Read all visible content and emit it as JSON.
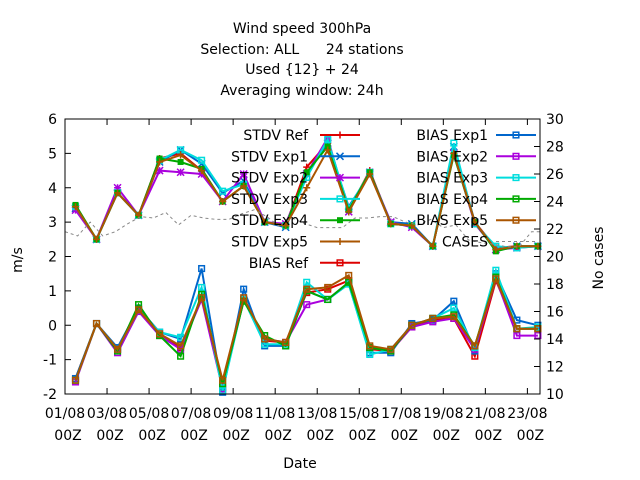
{
  "chart_data": {
    "type": "line",
    "title_lines": [
      "Wind speed 300hPa",
      "Selection: ALL      24 stations",
      "Used {12} + 24",
      "Averaging window: 24h"
    ],
    "xlabel": "Date",
    "ylabel": "m/s",
    "y2label": "No cases",
    "ylim": [
      -2,
      6
    ],
    "y2lim": [
      10,
      30
    ],
    "xlim": [
      0,
      22.6
    ],
    "yticks": [
      -2,
      -1,
      0,
      1,
      2,
      3,
      4,
      5,
      6
    ],
    "y2ticks": [
      10,
      12,
      14,
      16,
      18,
      20,
      22,
      24,
      26,
      28,
      30
    ],
    "xticks": [
      {
        "x": 0,
        "date": "01/08",
        "hour": "00Z"
      },
      {
        "x": 2,
        "date": "03/08",
        "hour": "00Z"
      },
      {
        "x": 4,
        "date": "05/08",
        "hour": "00Z"
      },
      {
        "x": 6,
        "date": "07/08",
        "hour": "00Z"
      },
      {
        "x": 8,
        "date": "09/08",
        "hour": "00Z"
      },
      {
        "x": 10,
        "date": "11/08",
        "hour": "00Z"
      },
      {
        "x": 12,
        "date": "13/08",
        "hour": "00Z"
      },
      {
        "x": 14,
        "date": "15/08",
        "hour": "00Z"
      },
      {
        "x": 16,
        "date": "17/08",
        "hour": "00Z"
      },
      {
        "x": 18,
        "date": "19/08",
        "hour": "00Z"
      },
      {
        "x": 20,
        "date": "21/08",
        "hour": "00Z"
      },
      {
        "x": 22,
        "date": "23/08",
        "hour": "00Z"
      }
    ],
    "x": [
      0.5,
      1.5,
      2.5,
      3.5,
      4.5,
      5.5,
      6.5,
      7.5,
      8.5,
      9.5,
      10.5,
      11.5,
      12.5,
      13.5,
      14.5,
      15.5,
      16.5,
      17.5,
      18.5,
      19.5,
      20.5,
      21.5,
      22.5
    ],
    "legend_placement": "top-right inside",
    "series": [
      {
        "name": "STDV Ref",
        "color": "#dd0000",
        "marker": "plus",
        "axis": "y",
        "values": [
          3.45,
          2.5,
          3.85,
          3.2,
          4.85,
          5.0,
          4.5,
          3.6,
          4.05,
          3.0,
          2.9,
          4.6,
          5.3,
          3.35,
          4.5,
          2.95,
          2.9,
          2.3,
          5.1,
          3.0,
          2.25,
          2.3,
          2.3
        ]
      },
      {
        "name": "STDV Exp1",
        "color": "#0066cc",
        "marker": "cross",
        "axis": "y",
        "values": [
          3.4,
          2.5,
          3.85,
          3.2,
          4.75,
          5.1,
          4.7,
          3.85,
          4.2,
          3.0,
          2.85,
          4.4,
          5.3,
          3.45,
          4.4,
          3.0,
          2.95,
          2.3,
          5.2,
          3.0,
          2.2,
          2.3,
          2.3
        ]
      },
      {
        "name": "STDV Exp2",
        "color": "#aa00dd",
        "marker": "star",
        "axis": "y",
        "values": [
          3.35,
          2.5,
          4.0,
          3.2,
          4.5,
          4.45,
          4.4,
          3.6,
          4.4,
          3.0,
          2.95,
          4.4,
          5.45,
          3.3,
          4.45,
          3.0,
          2.85,
          2.3,
          5.0,
          2.95,
          2.2,
          2.25,
          2.3
        ]
      },
      {
        "name": "STDV Exp3",
        "color": "#00dddd",
        "marker": "box",
        "axis": "y",
        "values": [
          3.45,
          2.5,
          3.85,
          3.2,
          4.8,
          5.1,
          4.8,
          3.9,
          4.1,
          3.0,
          2.9,
          4.3,
          5.4,
          3.4,
          4.45,
          2.95,
          2.9,
          2.3,
          5.3,
          2.95,
          2.3,
          2.25,
          2.3
        ]
      },
      {
        "name": "STDV Exp4",
        "color": "#00aa00",
        "marker": "filledbox",
        "axis": "y",
        "values": [
          3.5,
          2.5,
          3.85,
          3.2,
          4.85,
          4.75,
          4.55,
          3.6,
          4.05,
          3.0,
          2.9,
          4.45,
          5.2,
          3.35,
          4.45,
          2.95,
          2.9,
          2.3,
          4.95,
          3.0,
          2.15,
          2.3,
          2.3
        ]
      },
      {
        "name": "STDV Exp5",
        "color": "#aa5500",
        "marker": "plus",
        "axis": "y",
        "values": [
          3.45,
          2.5,
          3.85,
          3.2,
          4.75,
          4.95,
          4.5,
          3.6,
          4.05,
          3.0,
          2.9,
          4.0,
          5.1,
          3.3,
          4.4,
          2.95,
          2.9,
          2.3,
          5.0,
          3.0,
          2.2,
          2.3,
          2.3
        ]
      },
      {
        "name": "BIAS Ref",
        "color": "#dd0000",
        "marker": "box",
        "axis": "y",
        "values": [
          -1.55,
          0.05,
          -0.7,
          0.45,
          -0.25,
          -0.65,
          0.8,
          -1.8,
          0.75,
          -0.45,
          -0.5,
          0.95,
          1.05,
          1.3,
          -0.7,
          -0.75,
          -0.05,
          0.15,
          0.2,
          -0.9,
          1.3,
          -0.1,
          -0.1
        ]
      },
      {
        "name": "BIAS Exp1",
        "color": "#0066cc",
        "marker": "box",
        "axis": "y",
        "values": [
          -1.55,
          0.05,
          -0.65,
          0.5,
          -0.2,
          -0.4,
          1.65,
          -1.95,
          1.05,
          -0.6,
          -0.6,
          1.0,
          0.75,
          1.2,
          -0.8,
          -0.8,
          0.05,
          0.15,
          0.7,
          -0.75,
          1.5,
          0.15,
          0.0
        ]
      },
      {
        "name": "BIAS Exp2",
        "color": "#aa00dd",
        "marker": "box",
        "axis": "y",
        "values": [
          -1.65,
          0.05,
          -0.8,
          0.4,
          -0.3,
          -0.7,
          0.75,
          -1.85,
          0.75,
          -0.4,
          -0.5,
          0.6,
          0.75,
          1.25,
          -0.65,
          -0.75,
          -0.05,
          0.1,
          0.2,
          -0.7,
          1.35,
          -0.3,
          -0.3
        ]
      },
      {
        "name": "BIAS Exp3",
        "color": "#00dddd",
        "marker": "box",
        "axis": "y",
        "values": [
          -1.6,
          0.05,
          -0.7,
          0.45,
          -0.2,
          -0.35,
          1.1,
          -1.9,
          0.75,
          -0.55,
          -0.55,
          1.25,
          0.75,
          1.2,
          -0.85,
          -0.7,
          0.0,
          0.2,
          0.5,
          -0.65,
          1.6,
          -0.1,
          -0.05
        ]
      },
      {
        "name": "BIAS Exp4",
        "color": "#00aa00",
        "marker": "box",
        "axis": "y",
        "values": [
          -1.6,
          0.05,
          -0.75,
          0.6,
          -0.3,
          -0.9,
          0.9,
          -1.7,
          0.7,
          -0.3,
          -0.6,
          1.0,
          0.75,
          1.25,
          -0.65,
          -0.75,
          0.0,
          0.2,
          0.3,
          -0.6,
          1.4,
          -0.1,
          -0.1
        ]
      },
      {
        "name": "BIAS Exp5",
        "color": "#aa5500",
        "marker": "box",
        "axis": "y",
        "values": [
          -1.6,
          0.05,
          -0.7,
          0.45,
          -0.25,
          -0.6,
          0.8,
          -1.6,
          0.8,
          -0.4,
          -0.5,
          1.05,
          1.1,
          1.45,
          -0.6,
          -0.7,
          0.0,
          0.2,
          0.25,
          -0.6,
          1.35,
          -0.1,
          -0.1
        ]
      },
      {
        "name": "CASES",
        "color": "#888888",
        "marker": "none",
        "dash": true,
        "axis": "y2",
        "x": [
          0,
          0.6,
          1.2,
          1.8,
          2.4,
          3.0,
          3.6,
          4.2,
          4.8,
          5.4,
          6.0,
          6.6,
          7.2,
          7.8,
          8.4,
          9.0,
          9.6,
          10.2,
          10.8,
          11.4,
          12.0,
          12.6,
          13.2,
          13.8,
          14.4,
          15.0,
          15.6,
          16.2,
          16.8,
          17.4,
          18.0,
          18.6,
          19.2,
          19.8,
          20.4,
          21.0,
          21.6,
          22.2,
          22.6
        ],
        "values": [
          21.8,
          21.5,
          22.5,
          21.5,
          21.8,
          22.4,
          22.9,
          22.8,
          23.2,
          22.3,
          23.0,
          22.8,
          22.7,
          22.7,
          23.1,
          23.4,
          22.9,
          22.2,
          22.8,
          22.4,
          22.1,
          22.1,
          22.1,
          22.8,
          22.8,
          22.9,
          22.9,
          22.5,
          22.3,
          22.7,
          22.1,
          22.3,
          21.2,
          21.0,
          20.9,
          20.7,
          20.7,
          21.8,
          21.8
        ]
      }
    ]
  }
}
